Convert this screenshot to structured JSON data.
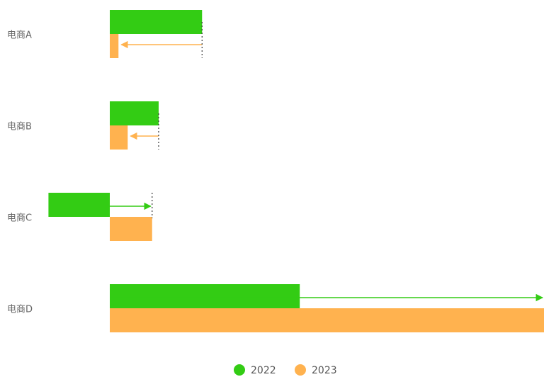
{
  "chart_data": {
    "type": "bar",
    "orientation": "horizontal",
    "categories": [
      "电商A",
      "电商B",
      "电商C",
      "电商D"
    ],
    "series": [
      {
        "name": "2022",
        "color": "#33cc14",
        "values": [
          170,
          90,
          -113,
          350
        ]
      },
      {
        "name": "2023",
        "color": "#ffb24f",
        "values": [
          16,
          33,
          78,
          800
        ]
      }
    ],
    "xlim": [
      -113,
      800
    ],
    "grid": false,
    "legend_position": "bottom-center",
    "change_arrows": true
  }
}
